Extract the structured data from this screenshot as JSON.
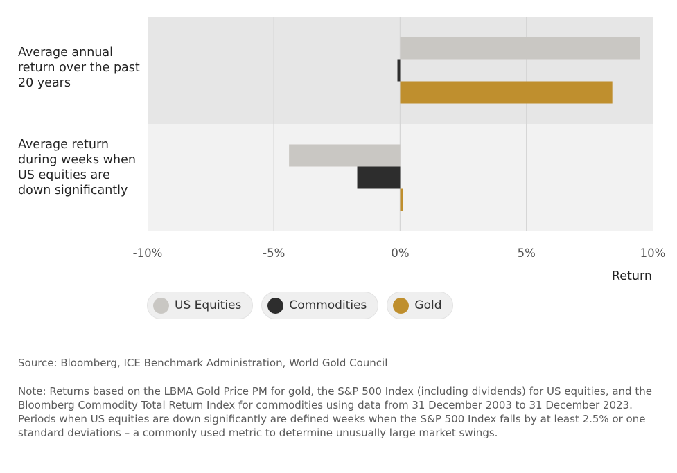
{
  "chart_data": {
    "type": "bar",
    "orientation": "horizontal",
    "categories": [
      "Average annual return over the past 20 years",
      "Average return during weeks when US equities are down significantly"
    ],
    "series": [
      {
        "name": "US Equities",
        "color": "#c9c7c3",
        "values": [
          9.5,
          -4.4
        ]
      },
      {
        "name": "Commodities",
        "color": "#2d2d2d",
        "values": [
          -0.1,
          -1.7
        ]
      },
      {
        "name": "Gold",
        "color": "#bf8f2e",
        "values": [
          8.4,
          0.1
        ]
      }
    ],
    "xlim": [
      -10,
      10
    ],
    "x_ticks": [
      "-10%",
      "-5%",
      "0%",
      "5%",
      "10%"
    ],
    "xlabel": "Return",
    "ylabel": "",
    "grid": true,
    "legend_position": "bottom"
  },
  "source": "Source: Bloomberg, ICE Benchmark Administration, World Gold Council",
  "note_1": "Note: Returns based on the LBMA Gold Price PM for gold, the S&P 500 Index (including dividends) for US equities, and the Bloomberg Commodity Total Return Index for commodities using data from 31 December 2003 to 31 December 2023.",
  "note_2": "Periods when US equities are down significantly are defined weeks when the S&P 500 Index falls by at least 2.5% or one standard deviations – a commonly used metric to determine unusually large market swings.",
  "colors": {
    "band_1": "#e6e6e6",
    "band_2": "#f2f2f2",
    "gridline": "#d6d6d6"
  }
}
